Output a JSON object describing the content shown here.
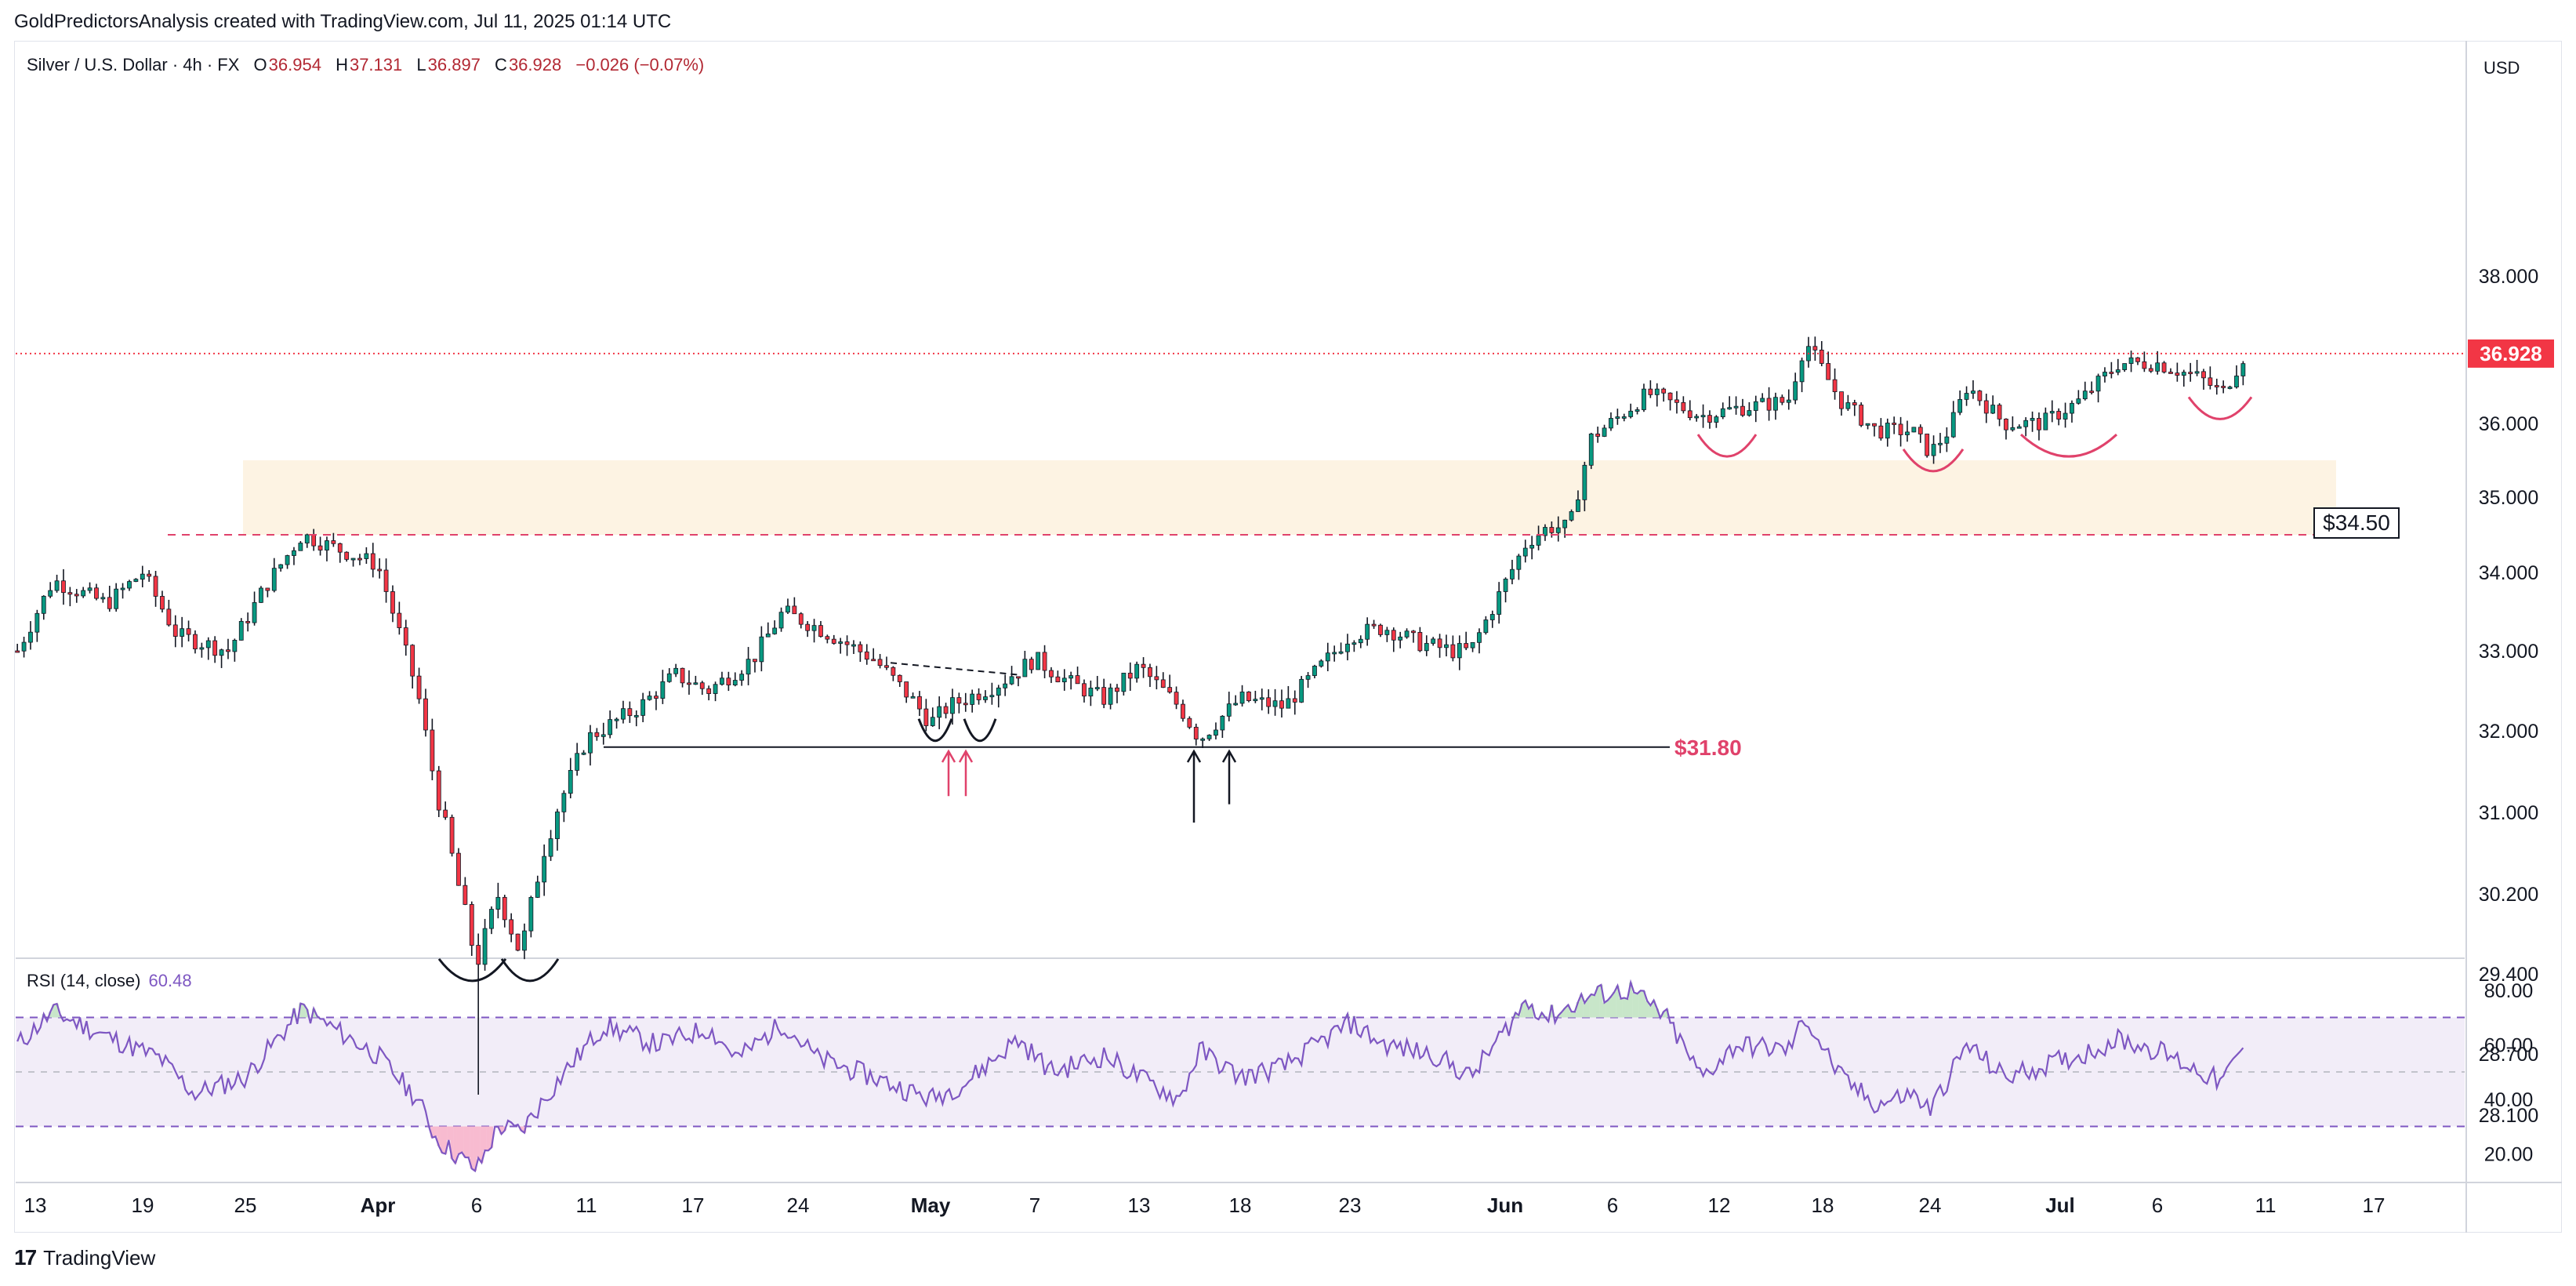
{
  "credit": "GoldPredictorsAnalysis created with TradingView.com, Jul 11, 2025 01:14 UTC",
  "legend": {
    "symbol": "Silver / U.S. Dollar · 4h · FX",
    "open_label": "O",
    "open": "36.954",
    "high_label": "H",
    "high": "37.131",
    "low_label": "L",
    "low": "36.897",
    "close_label": "C",
    "close": "36.928",
    "change": "−0.026 (−0.07%)"
  },
  "currency": "USD",
  "rsi_legend": {
    "label": "RSI (14, close)",
    "value": "60.48"
  },
  "footer": {
    "brand": "TradingView",
    "mark": "17"
  },
  "colors": {
    "up": "#089981",
    "down": "#f23645",
    "rsi": "#7e57c2",
    "zone": "#fdf3e3",
    "resistance": "#e0426b",
    "support": "#131722",
    "last_price": "#f23645"
  },
  "chart_data": [
    {
      "type": "candlestick",
      "title": "Silver / U.S. Dollar · 4h · FX",
      "ylim": [
        27.9,
        38.4
      ],
      "y_ticks": [
        "38.000",
        "37.000",
        "36.000",
        "35.000",
        "34.000",
        "33.000",
        "32.000",
        "31.000",
        "30.200",
        "29.400",
        "28.700",
        "28.100"
      ],
      "x_ticks": [
        "13",
        "19",
        "25",
        "Apr",
        "6",
        "11",
        "17",
        "24",
        "May",
        "7",
        "13",
        "18",
        "23",
        "Jun",
        "6",
        "12",
        "18",
        "24",
        "Jul",
        "6",
        "11",
        "17"
      ],
      "path_anchors": [
        {
          "date": "Mar 12",
          "price": 33.0
        },
        {
          "date": "Mar 14",
          "price": 33.9
        },
        {
          "date": "Mar 17",
          "price": 33.6
        },
        {
          "date": "Mar 19",
          "price": 34.0
        },
        {
          "date": "Mar 21",
          "price": 33.2
        },
        {
          "date": "Mar 24",
          "price": 33.0
        },
        {
          "date": "Mar 26",
          "price": 33.8
        },
        {
          "date": "Mar 28",
          "price": 34.5
        },
        {
          "date": "Apr 1",
          "price": 34.1
        },
        {
          "date": "Apr 3",
          "price": 32.5
        },
        {
          "date": "Apr 4",
          "price": 31.2
        },
        {
          "date": "Apr 6",
          "price": 29.5
        },
        {
          "date": "Apr 7",
          "price": 30.2
        },
        {
          "date": "Apr 8",
          "price": 29.6
        },
        {
          "date": "Apr 9",
          "price": 30.6
        },
        {
          "date": "Apr 11",
          "price": 31.9
        },
        {
          "date": "Apr 14",
          "price": 32.3
        },
        {
          "date": "Apr 16",
          "price": 32.7
        },
        {
          "date": "Apr 18",
          "price": 32.5
        },
        {
          "date": "Apr 21",
          "price": 32.9
        },
        {
          "date": "Apr 23",
          "price": 33.5
        },
        {
          "date": "Apr 25",
          "price": 33.3
        },
        {
          "date": "Apr 28",
          "price": 32.9
        },
        {
          "date": "Apr 30",
          "price": 32.4
        },
        {
          "date": "May 1",
          "price": 32.1
        },
        {
          "date": "May 2",
          "price": 32.3
        },
        {
          "date": "May 5",
          "price": 32.6
        },
        {
          "date": "May 7",
          "price": 32.9
        },
        {
          "date": "May 9",
          "price": 32.6
        },
        {
          "date": "May 11",
          "price": 32.4
        },
        {
          "date": "May 13",
          "price": 32.8
        },
        {
          "date": "May 15",
          "price": 32.3
        },
        {
          "date": "May 16",
          "price": 31.9
        },
        {
          "date": "May 18",
          "price": 32.4
        },
        {
          "date": "May 20",
          "price": 32.3
        },
        {
          "date": "May 23",
          "price": 33.2
        },
        {
          "date": "May 25",
          "price": 33.3
        },
        {
          "date": "May 27",
          "price": 33.1
        },
        {
          "date": "May 29",
          "price": 33.0
        },
        {
          "date": "May 30",
          "price": 33.0
        },
        {
          "date": "Jun 2",
          "price": 34.4
        },
        {
          "date": "Jun 3",
          "price": 34.6
        },
        {
          "date": "Jun 4",
          "price": 34.6
        },
        {
          "date": "Jun 5",
          "price": 35.8
        },
        {
          "date": "Jun 8",
          "price": 36.4
        },
        {
          "date": "Jun 11",
          "price": 36.1
        },
        {
          "date": "Jun 13",
          "price": 36.2
        },
        {
          "date": "Jun 16",
          "price": 36.3
        },
        {
          "date": "Jun 17",
          "price": 37.1
        },
        {
          "date": "Jun 19",
          "price": 36.3
        },
        {
          "date": "Jun 21",
          "price": 35.9
        },
        {
          "date": "Jun 23",
          "price": 35.9
        },
        {
          "date": "Jun 24",
          "price": 35.6
        },
        {
          "date": "Jun 25",
          "price": 35.9
        },
        {
          "date": "Jun 26",
          "price": 36.5
        },
        {
          "date": "Jun 28",
          "price": 36.0
        },
        {
          "date": "Jun 30",
          "price": 36.0
        },
        {
          "date": "Jul 2",
          "price": 36.3
        },
        {
          "date": "Jul 4",
          "price": 36.8
        },
        {
          "date": "Jul 6",
          "price": 36.8
        },
        {
          "date": "Jul 8",
          "price": 36.6
        },
        {
          "date": "Jul 9",
          "price": 36.4
        },
        {
          "date": "Jul 10",
          "price": 36.9
        }
      ],
      "extreme_low": {
        "date": "Apr 6",
        "price": 28.3
      },
      "last_price": "36.928",
      "annotations": {
        "resistance_label": "$34.50",
        "resistance_value": 34.5,
        "support_label": "$31.80",
        "support_value": 31.8,
        "zone": {
          "from": 34.5,
          "to": 35.5
        }
      }
    },
    {
      "type": "line",
      "title": "RSI (14, close)",
      "ylim": [
        10,
        90
      ],
      "y_ticks": [
        "80.00",
        "60.00",
        "40.00",
        "20.00"
      ],
      "bands": {
        "upper": 70,
        "middle": 50,
        "lower": 30
      },
      "last_value": 60.48,
      "anchors": [
        {
          "date": "Mar 12",
          "value": 60
        },
        {
          "date": "Mar 14",
          "value": 72
        },
        {
          "date": "Mar 17",
          "value": 63
        },
        {
          "date": "Mar 20",
          "value": 55
        },
        {
          "date": "Mar 22",
          "value": 42
        },
        {
          "date": "Mar 25",
          "value": 48
        },
        {
          "date": "Mar 28",
          "value": 73
        },
        {
          "date": "Apr 1",
          "value": 56
        },
        {
          "date": "Apr 3",
          "value": 40
        },
        {
          "date": "Apr 4",
          "value": 25
        },
        {
          "date": "Apr 6",
          "value": 14
        },
        {
          "date": "Apr 7",
          "value": 30
        },
        {
          "date": "Apr 8",
          "value": 28
        },
        {
          "date": "Apr 10",
          "value": 50
        },
        {
          "date": "Apr 12",
          "value": 67
        },
        {
          "date": "Apr 15",
          "value": 60
        },
        {
          "date": "Apr 18",
          "value": 66
        },
        {
          "date": "Apr 20",
          "value": 55
        },
        {
          "date": "Apr 23",
          "value": 68
        },
        {
          "date": "Apr 25",
          "value": 55
        },
        {
          "date": "Apr 28",
          "value": 48
        },
        {
          "date": "May 1",
          "value": 40
        },
        {
          "date": "May 3",
          "value": 46
        },
        {
          "date": "May 6",
          "value": 62
        },
        {
          "date": "May 8",
          "value": 50
        },
        {
          "date": "May 11",
          "value": 56
        },
        {
          "date": "May 13",
          "value": 48
        },
        {
          "date": "May 15",
          "value": 40
        },
        {
          "date": "May 16",
          "value": 58
        },
        {
          "date": "May 18",
          "value": 48
        },
        {
          "date": "May 20",
          "value": 52
        },
        {
          "date": "May 23",
          "value": 68
        },
        {
          "date": "May 25",
          "value": 60
        },
        {
          "date": "May 28",
          "value": 56
        },
        {
          "date": "May 30",
          "value": 48
        },
        {
          "date": "Jun 2",
          "value": 76
        },
        {
          "date": "Jun 3",
          "value": 70
        },
        {
          "date": "Jun 5",
          "value": 78
        },
        {
          "date": "Jun 7",
          "value": 80
        },
        {
          "date": "Jun 9",
          "value": 70
        },
        {
          "date": "Jun 11",
          "value": 48
        },
        {
          "date": "Jun 13",
          "value": 60
        },
        {
          "date": "Jun 16",
          "value": 58
        },
        {
          "date": "Jun 17",
          "value": 70
        },
        {
          "date": "Jun 19",
          "value": 48
        },
        {
          "date": "Jun 21",
          "value": 38
        },
        {
          "date": "Jun 23",
          "value": 42
        },
        {
          "date": "Jun 24",
          "value": 36
        },
        {
          "date": "Jun 26",
          "value": 60
        },
        {
          "date": "Jun 28",
          "value": 48
        },
        {
          "date": "Jun 30",
          "value": 52
        },
        {
          "date": "Jul 2",
          "value": 56
        },
        {
          "date": "Jul 4",
          "value": 62
        },
        {
          "date": "Jul 6",
          "value": 58
        },
        {
          "date": "Jul 8",
          "value": 50
        },
        {
          "date": "Jul 9",
          "value": 46
        },
        {
          "date": "Jul 10",
          "value": 60
        }
      ]
    }
  ]
}
